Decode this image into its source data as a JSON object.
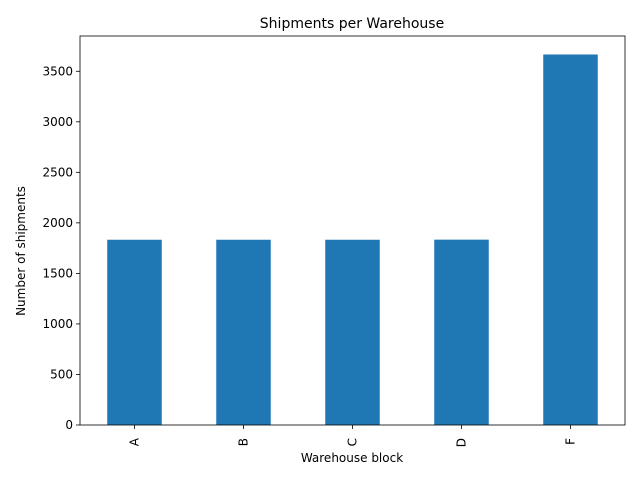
{
  "chart_data": {
    "type": "bar",
    "title": "Shipments per Warehouse",
    "xlabel": "Warehouse block",
    "ylabel": "Number of shipments",
    "categories": [
      "A",
      "B",
      "C",
      "D",
      "F"
    ],
    "values": [
      1833,
      1833,
      1833,
      1834,
      3666
    ],
    "ylim": [
      0,
      3849
    ],
    "yticks": [
      0,
      500,
      1000,
      1500,
      2000,
      2500,
      3000,
      3500
    ],
    "ytick_labels": [
      "0",
      "500",
      "1000",
      "1500",
      "2000",
      "2500",
      "3000",
      "3500"
    ],
    "bar_color": "#1f77b4",
    "grid": false,
    "legend": "none"
  }
}
